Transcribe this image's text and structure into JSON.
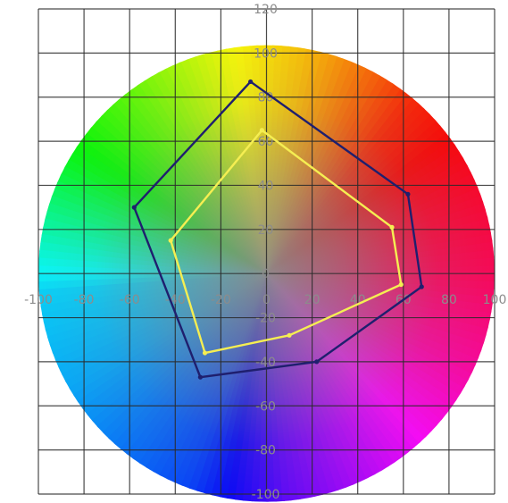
{
  "chart_data": {
    "type": "line",
    "title": "",
    "xlabel": "",
    "ylabel": "",
    "xlim": [
      -100,
      100
    ],
    "ylim": [
      -100,
      120
    ],
    "x_ticks": [
      -100,
      -80,
      -60,
      -40,
      -20,
      0,
      20,
      40,
      60,
      80,
      100
    ],
    "y_ticks": [
      120,
      100,
      80,
      60,
      40,
      20,
      0,
      -20,
      -40,
      -60,
      -80,
      -100
    ],
    "x_tick_labels": [
      "-100",
      "-80",
      "-60",
      "-40",
      "-20",
      "0",
      "20",
      "40",
      "60",
      "80",
      "100"
    ],
    "y_tick_labels": [
      "120",
      "100",
      "80",
      "60",
      "40",
      "20",
      "0",
      "-20",
      "-40",
      "-60",
      "-80",
      "-100"
    ],
    "grid": true,
    "legend": "none",
    "background": "color wheel (hue around the circle, gray toward the center), radius 100",
    "series": [
      {
        "color": "#1f1f6e",
        "closed": true,
        "x": [
          -7,
          62,
          68,
          22,
          -29,
          -58
        ],
        "y": [
          87,
          36,
          -6,
          -40,
          -47,
          30
        ]
      },
      {
        "color": "#f5ee52",
        "closed": true,
        "x": [
          -2,
          55,
          59,
          10,
          -27,
          -42
        ],
        "y": [
          65,
          21,
          -5,
          -28,
          -36,
          15
        ]
      }
    ]
  }
}
